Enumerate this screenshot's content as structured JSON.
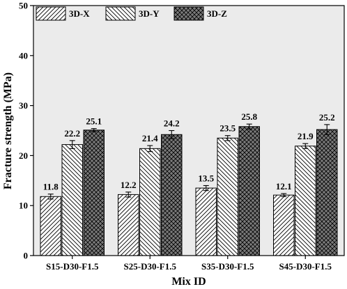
{
  "chart_data": {
    "type": "bar",
    "title": "",
    "xlabel": "Mix ID",
    "ylabel": "Fracture strength (MPa)",
    "ylim": [
      0,
      50
    ],
    "yticks": [
      0,
      10,
      20,
      30,
      40,
      50
    ],
    "categories": [
      "S15-D30-F1.5",
      "S25-D30-F1.5",
      "S35-D30-F1.5",
      "S45-D30-F1.5"
    ],
    "series": [
      {
        "name": "3D-X",
        "values": [
          11.8,
          12.2,
          13.5,
          12.1
        ],
        "errors": [
          0.5,
          0.5,
          0.5,
          0.3
        ],
        "pattern": "diagonal-up"
      },
      {
        "name": "3D-Y",
        "values": [
          22.2,
          21.4,
          23.5,
          21.9
        ],
        "errors": [
          0.8,
          0.6,
          0.5,
          0.5
        ],
        "pattern": "diagonal-down"
      },
      {
        "name": "3D-Z",
        "values": [
          25.1,
          24.2,
          25.8,
          25.2
        ],
        "errors": [
          0.3,
          0.8,
          0.5,
          1.0
        ],
        "pattern": "crosshatch-dark"
      }
    ],
    "data_labels": [
      [
        "11.8",
        "12.2",
        "13.5",
        "12.1"
      ],
      [
        "22.2",
        "21.4",
        "23.5",
        "21.9"
      ],
      [
        "25.1",
        "24.2",
        "25.8",
        "25.2"
      ]
    ],
    "legend_position": "top-left",
    "grid": false,
    "colors": {
      "plot_background": "#ebebeb",
      "bar_fill": "#ffffff",
      "crosshatch_fill": "#7a7a7a",
      "stroke": "#000000"
    }
  }
}
